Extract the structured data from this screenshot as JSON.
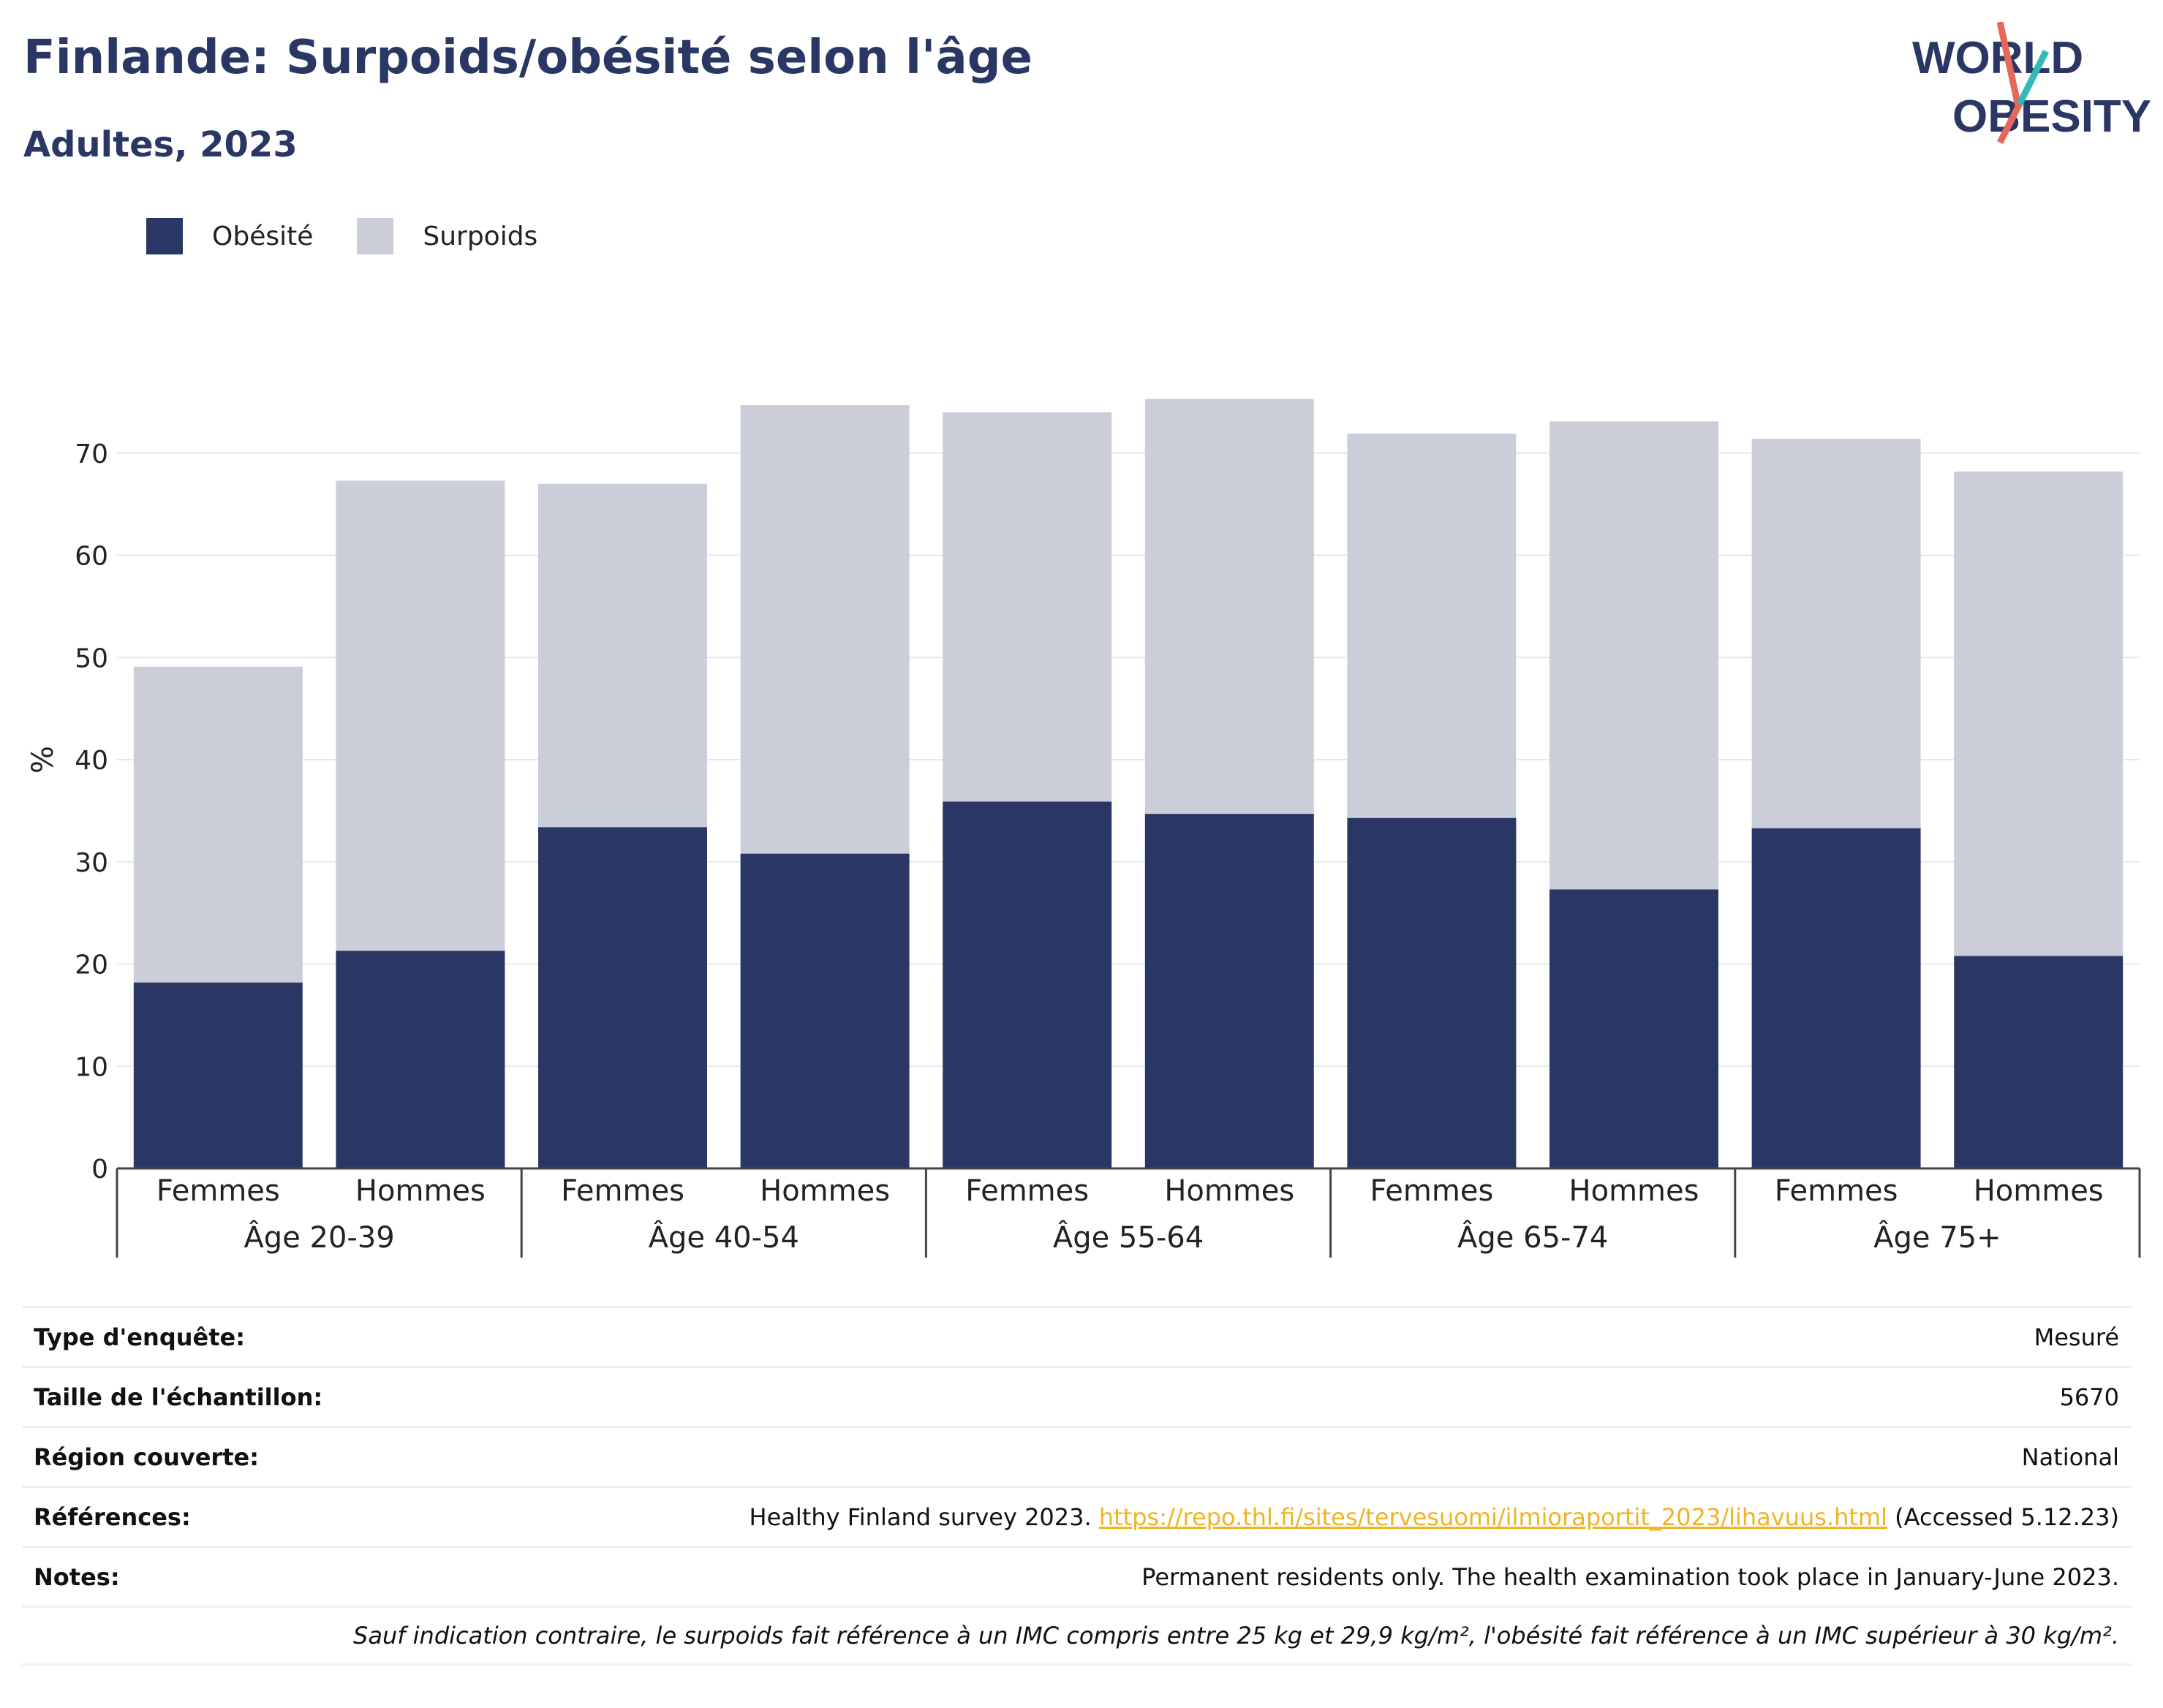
{
  "header": {
    "title": "Finlande: Surpoids/obésité selon l'âge",
    "subtitle": "Adultes, 2023"
  },
  "logo": {
    "line1": "WORLD",
    "line2": "OBESITY"
  },
  "colors": {
    "obesity": "#2a3663",
    "overweight": "#cbcdd9",
    "accent_red": "#e8665a",
    "accent_teal": "#36b9b5",
    "link": "#f0b323"
  },
  "chart_data": {
    "type": "bar",
    "stacked": true,
    "ylabel": "%",
    "ylim": [
      0,
      80
    ],
    "yticks": [
      0,
      10,
      20,
      30,
      40,
      50,
      60,
      70
    ],
    "grid": true,
    "legend_position": "top-left",
    "categories": [
      "Femmes",
      "Hommes",
      "Femmes",
      "Hommes",
      "Femmes",
      "Hommes",
      "Femmes",
      "Hommes",
      "Femmes",
      "Hommes"
    ],
    "groups": [
      "Âge 20-39",
      "Âge 40-54",
      "Âge 55-64",
      "Âge 65-74",
      "Âge 75+"
    ],
    "series": [
      {
        "name": "Obésité",
        "color": "#2a3663",
        "values": [
          18.2,
          21.3,
          33.4,
          30.8,
          35.9,
          34.7,
          34.3,
          27.3,
          33.3,
          20.8
        ]
      },
      {
        "name": "Surpoids",
        "color": "#cbcdd9",
        "values": [
          30.9,
          46.0,
          33.6,
          43.9,
          38.1,
          40.6,
          37.6,
          45.8,
          38.1,
          47.4
        ]
      }
    ]
  },
  "info": {
    "survey_type_label": "Type d'enquête:",
    "survey_type_value": "Mesuré",
    "sample_label": "Taille de l'échantillon:",
    "sample_value": "5670",
    "region_label": "Région couverte:",
    "region_value": "National",
    "refs_label": "Références:",
    "refs_prefix": "Healthy Finland survey 2023. ",
    "refs_link": "https://repo.thl.fi/sites/tervesuomi/ilmioraportit_2023/lihavuus.html",
    "refs_suffix": " (Accessed 5.12.23)",
    "notes_label": "Notes:",
    "notes_value": "Permanent residents only. The health examination took place in January-June 2023.",
    "footnote": "Sauf indication contraire, le surpoids fait référence à un IMC compris entre 25 kg et 29,9 kg/m², l'obésité fait référence à un IMC supérieur à 30 kg/m²."
  }
}
